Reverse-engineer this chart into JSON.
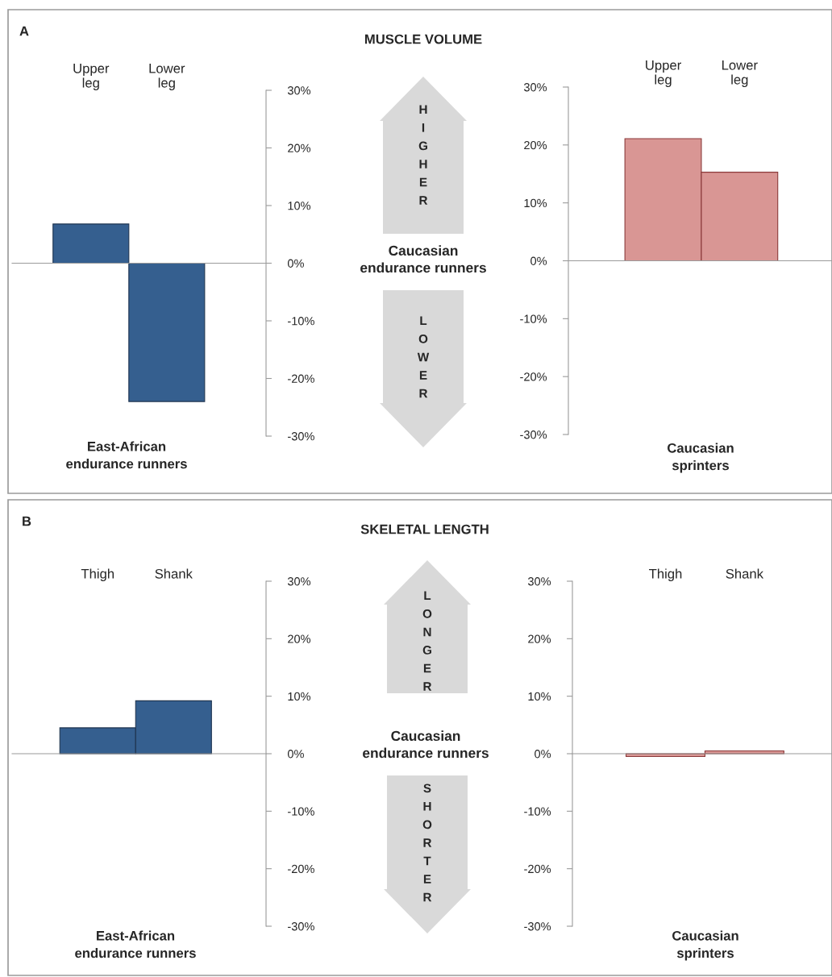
{
  "chart_data": [
    {
      "type": "bar",
      "annotations": [
        "A"
      ],
      "categories": [
        "Upper leg",
        "Lower leg"
      ],
      "values": [
        6.8,
        -24
      ],
      "color": "#355f8f",
      "xlabel": "East-African\nendurance runners",
      "ylim": [
        -30,
        30
      ],
      "yticks": [
        {
          "value": -30,
          "label": "-30%"
        },
        {
          "value": -20,
          "label": "-20%"
        },
        {
          "value": -10,
          "label": "-10%"
        },
        {
          "value": 0,
          "label": "0%"
        },
        {
          "value": 10,
          "label": "10%"
        },
        {
          "value": 20,
          "label": "20%"
        },
        {
          "value": 30,
          "label": "30%"
        }
      ],
      "legend": false
    },
    {
      "type": "other",
      "title": "MUSCLE VOLUME",
      "annotations": [
        "Caucasian\nendurance runners",
        "HIGHER",
        "LOWER"
      ]
    },
    {
      "type": "bar",
      "categories": [
        "Upper leg",
        "Lower leg"
      ],
      "values": [
        21.1,
        15.3
      ],
      "color": "#d99694",
      "xlabel": "Caucasian\nsprinters",
      "ylim": [
        -30,
        30
      ],
      "yticks": [
        {
          "value": -30,
          "label": "-30%"
        },
        {
          "value": -20,
          "label": "-20%"
        },
        {
          "value": -10,
          "label": "-10%"
        },
        {
          "value": 0,
          "label": "0%"
        },
        {
          "value": 10,
          "label": "10%"
        },
        {
          "value": 20,
          "label": "20%"
        },
        {
          "value": 30,
          "label": "30%"
        }
      ],
      "legend": false
    },
    {
      "type": "bar",
      "annotations": [
        "B"
      ],
      "categories": [
        "Thigh",
        "Shank"
      ],
      "values": [
        4.5,
        9.2
      ],
      "color": "#355f8f",
      "xlabel": "East-African\nendurance runners",
      "ylim": [
        -30,
        30
      ],
      "yticks": [
        {
          "value": -30,
          "label": "-30%"
        },
        {
          "value": -20,
          "label": "-20%"
        },
        {
          "value": -10,
          "label": "-10%"
        },
        {
          "value": 0,
          "label": "0%"
        },
        {
          "value": 10,
          "label": "10%"
        },
        {
          "value": 20,
          "label": "20%"
        },
        {
          "value": 30,
          "label": "30%"
        }
      ],
      "legend": false
    },
    {
      "type": "other",
      "title": "SKELETAL LENGTH",
      "annotations": [
        "Caucasian\nendurance runners",
        "LONGER",
        "SHORTER"
      ]
    },
    {
      "type": "bar",
      "categories": [
        "Thigh",
        "Shank"
      ],
      "values": [
        -0.5,
        0.5
      ],
      "color": "#d99694",
      "xlabel": "Caucasian\nsprinters",
      "ylim": [
        -30,
        30
      ],
      "yticks": [
        {
          "value": -30,
          "label": "-30%"
        },
        {
          "value": -20,
          "label": "-20%"
        },
        {
          "value": -10,
          "label": "-10%"
        },
        {
          "value": 0,
          "label": "0%"
        },
        {
          "value": 10,
          "label": "10%"
        },
        {
          "value": 20,
          "label": "20%"
        },
        {
          "value": 30,
          "label": "30%"
        }
      ],
      "legend": false
    }
  ]
}
